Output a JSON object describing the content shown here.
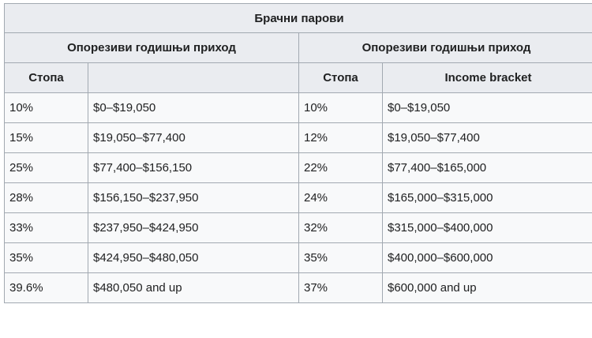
{
  "table": {
    "title": "Брачни парови",
    "group_headers": [
      "Опорезиви годишњи приход",
      "Опорезиви годишњи приход"
    ],
    "column_headers": [
      "Стопа",
      "",
      "Стопа",
      "Income bracket"
    ],
    "rows": [
      [
        "10%",
        "$0–$19,050",
        "10%",
        "$0–$19,050"
      ],
      [
        "15%",
        "$19,050–$77,400",
        "12%",
        "$19,050–$77,400"
      ],
      [
        "25%",
        "$77,400–$156,150",
        "22%",
        "$77,400–$165,000"
      ],
      [
        "28%",
        "$156,150–$237,950",
        "24%",
        "$165,000–$315,000"
      ],
      [
        "33%",
        "$237,950–$424,950",
        "32%",
        "$315,000–$400,000"
      ],
      [
        "35%",
        "$424,950–$480,050",
        "35%",
        "$400,000–$600,000"
      ],
      [
        "39.6%",
        "$480,050 and up",
        "37%",
        "$600,000 and up"
      ]
    ]
  }
}
